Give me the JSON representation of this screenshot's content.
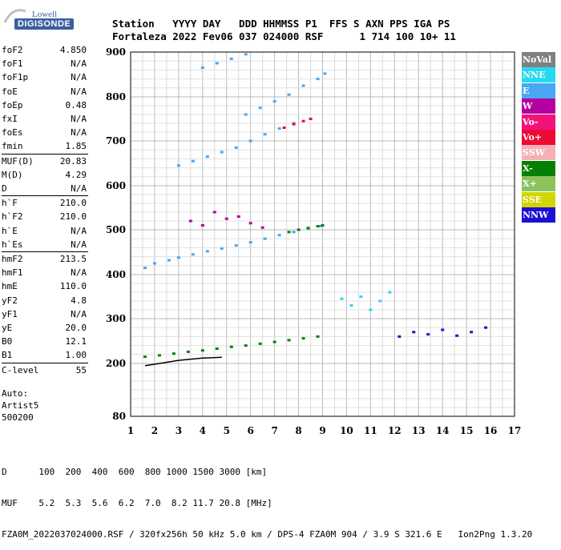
{
  "logo": {
    "brand": "Lowell",
    "product": "DIGISONDE"
  },
  "header": {
    "line1": "Station   YYYY DAY   DDD HHMMSS P1  FFS S AXN PPS IGA PS",
    "line2": "Fortaleza 2022 Fev06 037 024000 RSF      1 714 100 10+ 11"
  },
  "params": [
    {
      "name": "foF2",
      "value": "4.850"
    },
    {
      "name": "foF1",
      "value": "N/A"
    },
    {
      "name": "foF1p",
      "value": "N/A"
    },
    {
      "name": "foE",
      "value": "N/A"
    },
    {
      "name": "foEp",
      "value": "0.48"
    },
    {
      "name": "fxI",
      "value": "N/A"
    },
    {
      "name": "foEs",
      "value": "N/A"
    },
    {
      "name": "fmin",
      "value": "1.85"
    },
    {
      "name": "MUF(D)",
      "value": "20.83"
    },
    {
      "name": "M(D)",
      "value": "4.29"
    },
    {
      "name": "D",
      "value": "N/A"
    },
    {
      "name": "h`F",
      "value": "210.0"
    },
    {
      "name": "h`F2",
      "value": "210.0"
    },
    {
      "name": "h`E",
      "value": "N/A"
    },
    {
      "name": "h`Es",
      "value": "N/A"
    },
    {
      "name": "hmF2",
      "value": "213.5"
    },
    {
      "name": "hmF1",
      "value": "N/A"
    },
    {
      "name": "hmE",
      "value": "110.0"
    },
    {
      "name": "yF2",
      "value": "4.8"
    },
    {
      "name": "yF1",
      "value": "N/A"
    },
    {
      "name": "yE",
      "value": "20.0"
    },
    {
      "name": "B0",
      "value": "12.1"
    },
    {
      "name": "B1",
      "value": "1.00"
    },
    {
      "name": "C-level",
      "value": "55"
    }
  ],
  "auto": {
    "line1": "Auto:",
    "line2": "Artist5",
    "line3": "500200"
  },
  "legend": [
    {
      "label": "NoVal",
      "color": "#808080"
    },
    {
      "label": "NNE",
      "color": "#26d9f0"
    },
    {
      "label": "E",
      "color": "#4aa6f2"
    },
    {
      "label": "W",
      "color": "#b4009e"
    },
    {
      "label": "Vo-",
      "color": "#f0147a"
    },
    {
      "label": "Vo+",
      "color": "#ee0a32"
    },
    {
      "label": "SSW",
      "color": "#f4b1b6"
    },
    {
      "label": "X-",
      "color": "#058005"
    },
    {
      "label": "X+",
      "color": "#8ec25a"
    },
    {
      "label": "SSE",
      "color": "#d4d400"
    },
    {
      "label": "NNW",
      "color": "#1c10d4"
    }
  ],
  "footer": {
    "line1": "D      100  200  400  600  800 1000 1500 3000 [km]",
    "line2": "MUF    5.2  5.3  5.6  6.2  7.0  8.2 11.7 20.8 [MHz]",
    "line3": "FZA0M_2022037024000.RSF / 320fx256h 50 kHz 5.0 km / DPS-4 FZA0M 904 / 3.9 S 321.6 E   Ion2Png 1.3.20"
  },
  "chart_data": {
    "type": "scatter",
    "title": "",
    "xlabel": "",
    "ylabel": "",
    "xlim": [
      1,
      17
    ],
    "ylim": [
      80,
      900
    ],
    "x_ticks": [
      "1",
      "2",
      "3",
      "4",
      "5",
      "6",
      "7",
      "8",
      "9",
      "10",
      "11",
      "12",
      "13",
      "14",
      "15",
      "16",
      "17"
    ],
    "y_ticks": [
      "80",
      "200",
      "300",
      "400",
      "500",
      "600",
      "700",
      "800",
      "900"
    ],
    "y_tick_values": [
      80,
      200,
      300,
      400,
      500,
      600,
      700,
      800,
      900
    ],
    "grid": true,
    "legend_position": "right",
    "series": [
      {
        "color": "#4aa6f2",
        "points": [
          [
            1.6,
            415
          ],
          [
            2.0,
            425
          ],
          [
            2.6,
            432
          ],
          [
            3.0,
            438
          ],
          [
            3.6,
            445
          ],
          [
            4.2,
            452
          ],
          [
            4.8,
            458
          ],
          [
            5.4,
            465
          ],
          [
            6.0,
            472
          ],
          [
            6.6,
            480
          ],
          [
            7.2,
            488
          ],
          [
            7.8,
            495
          ],
          [
            8.4,
            502
          ],
          [
            8.9,
            508
          ]
        ]
      },
      {
        "color": "#4aa6f2",
        "points": [
          [
            3.0,
            645
          ],
          [
            3.6,
            655
          ],
          [
            4.2,
            665
          ],
          [
            4.8,
            675
          ],
          [
            5.4,
            685
          ],
          [
            6.0,
            700
          ],
          [
            6.6,
            715
          ],
          [
            7.2,
            728
          ],
          [
            7.8,
            740
          ]
        ]
      },
      {
        "color": "#4aa6f2",
        "points": [
          [
            5.8,
            760
          ],
          [
            6.4,
            775
          ],
          [
            7.0,
            790
          ],
          [
            7.6,
            805
          ],
          [
            8.2,
            825
          ],
          [
            8.8,
            840
          ],
          [
            9.1,
            852
          ]
        ]
      },
      {
        "color": "#4aa6f2",
        "points": [
          [
            4.0,
            865
          ],
          [
            4.6,
            875
          ],
          [
            5.2,
            885
          ],
          [
            5.8,
            895
          ]
        ]
      },
      {
        "color": "#058005",
        "points": [
          [
            7.6,
            495
          ],
          [
            8.0,
            500
          ],
          [
            8.4,
            504
          ],
          [
            8.8,
            508
          ],
          [
            9.0,
            510
          ]
        ]
      },
      {
        "color": "#ee0a32",
        "points": [
          [
            7.4,
            730
          ],
          [
            7.8,
            738
          ],
          [
            8.2,
            745
          ],
          [
            8.5,
            750
          ]
        ]
      },
      {
        "color": "#b4009e",
        "points": [
          [
            3.5,
            520
          ],
          [
            4.0,
            510
          ],
          [
            4.5,
            540
          ],
          [
            5.0,
            525
          ],
          [
            5.5,
            530
          ],
          [
            6.0,
            515
          ],
          [
            6.5,
            505
          ]
        ]
      },
      {
        "color": "#26d9f0",
        "points": [
          [
            9.8,
            345
          ],
          [
            10.2,
            330
          ],
          [
            10.6,
            350
          ],
          [
            11.0,
            320
          ],
          [
            11.4,
            340
          ],
          [
            11.8,
            360
          ]
        ]
      },
      {
        "color": "#1c10d4",
        "points": [
          [
            12.2,
            260
          ],
          [
            12.8,
            270
          ],
          [
            13.4,
            265
          ],
          [
            14.0,
            275
          ],
          [
            14.6,
            262
          ],
          [
            15.2,
            270
          ],
          [
            15.8,
            280
          ]
        ]
      },
      {
        "color": "#058005",
        "points": [
          [
            1.6,
            215
          ],
          [
            2.2,
            218
          ],
          [
            2.8,
            222
          ],
          [
            3.4,
            226
          ],
          [
            4.0,
            229
          ],
          [
            4.6,
            233
          ],
          [
            5.2,
            237
          ],
          [
            5.8,
            240
          ],
          [
            6.4,
            244
          ],
          [
            7.0,
            248
          ],
          [
            7.6,
            252
          ],
          [
            8.2,
            256
          ],
          [
            8.8,
            260
          ]
        ]
      }
    ]
  }
}
